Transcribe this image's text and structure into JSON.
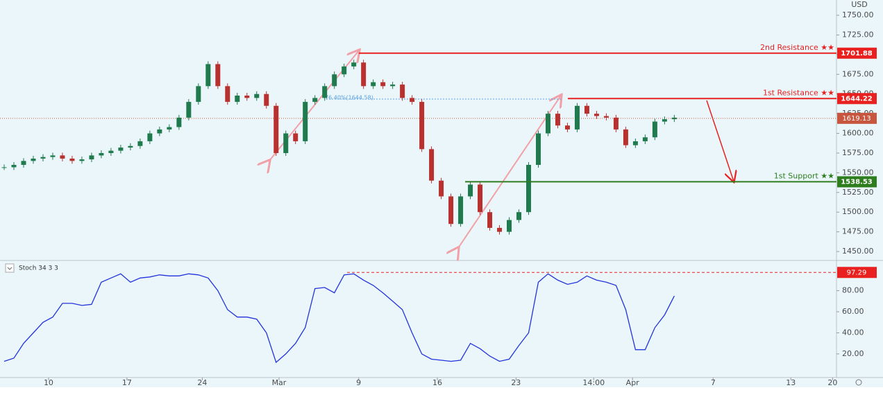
{
  "chart_data": [
    {
      "type": "candlestick",
      "unit": "USD",
      "close": [
        1557,
        1560,
        1565,
        1568,
        1570,
        1572,
        1568,
        1565,
        1567,
        1572,
        1575,
        1578,
        1582,
        1584,
        1590,
        1600,
        1605,
        1608,
        1620,
        1640,
        1660,
        1688,
        1660,
        1640,
        1648,
        1645,
        1650,
        1635,
        1575,
        1600,
        1590,
        1640,
        1645,
        1660,
        1675,
        1685,
        1690,
        1660,
        1665,
        1660,
        1662,
        1645,
        1640,
        1580,
        1540,
        1520,
        1485,
        1520,
        1535,
        1500,
        1480,
        1475,
        1490,
        1500,
        1560,
        1600,
        1625,
        1610,
        1605,
        1635,
        1625,
        1622,
        1620,
        1605,
        1585,
        1590,
        1595,
        1615,
        1618,
        1620
      ],
      "up_color": "#1f7a4d",
      "down_color": "#b8312f",
      "ylim": [
        1439.5,
        1769.4
      ],
      "yticks": [
        {
          "value": 1450,
          "label": "1450.00"
        },
        {
          "value": 1475,
          "label": "1475.00"
        },
        {
          "value": 1500,
          "label": "1500.00"
        },
        {
          "value": 1525,
          "label": "1525.00"
        },
        {
          "value": 1550,
          "label": "1550.00"
        },
        {
          "value": 1575,
          "label": "1575.00"
        },
        {
          "value": 1600,
          "label": "1600.00"
        },
        {
          "value": 1625,
          "label": "1625.00"
        },
        {
          "value": 1650,
          "label": "1650.00"
        },
        {
          "value": 1675,
          "label": "1675.00"
        },
        {
          "value": 1700,
          "label": "1700.00"
        },
        {
          "value": 1725,
          "label": "1725.00"
        },
        {
          "value": 1750,
          "label": "1750.00"
        }
      ],
      "levels": [
        {
          "name": "2nd Resistance ★★",
          "value": 1701.88,
          "color": "#e8201f"
        },
        {
          "name": "1st Resistance ★★",
          "value": 1644.22,
          "color": "#e8201f"
        },
        {
          "name": "1st Support ★★",
          "value": 1538.53,
          "color": "#2e7d1f"
        }
      ],
      "last_price": {
        "value": 1619.13,
        "color": "#c8553d"
      },
      "annotation": "76.40%(1644.58)"
    },
    {
      "type": "line",
      "title": "Stoch 34 3 3",
      "color": "#2233dd",
      "values": [
        13,
        16,
        30,
        40,
        50,
        55,
        68,
        68,
        66,
        67,
        88,
        92,
        96,
        88,
        92,
        93,
        95,
        94,
        94,
        96,
        95,
        92,
        80,
        62,
        55,
        55,
        53,
        40,
        12,
        20,
        30,
        45,
        82,
        83,
        78,
        95,
        96,
        90,
        85,
        78,
        70,
        62,
        40,
        20,
        15,
        14,
        13,
        14,
        30,
        25,
        18,
        13,
        15,
        28,
        40,
        88,
        96,
        90,
        86,
        88,
        94,
        90,
        88,
        85,
        62,
        24,
        24,
        45,
        57,
        75
      ],
      "ylim": [
        -2.4,
        108
      ],
      "yticks": [
        {
          "value": 20,
          "label": "20.00"
        },
        {
          "value": 40,
          "label": "40.00"
        },
        {
          "value": 60,
          "label": "60.00"
        },
        {
          "value": 80,
          "label": "80.00"
        }
      ],
      "level": {
        "value": 97.29,
        "color": "#e8201f"
      },
      "xlim": [
        -0.43,
        85.7
      ],
      "xticks": [
        {
          "value": 4.57,
          "label": "10"
        },
        {
          "value": 12.64,
          "label": "17"
        },
        {
          "value": 20.4,
          "label": "24"
        },
        {
          "value": 28.3,
          "label": "Mar"
        },
        {
          "value": 36.5,
          "label": "9"
        },
        {
          "value": 44.6,
          "label": "16"
        },
        {
          "value": 52.7,
          "label": "23"
        },
        {
          "value": 60.7,
          "label": "14:00"
        },
        {
          "value": 64.7,
          "label": "Apr"
        },
        {
          "value": 73,
          "label": "7"
        },
        {
          "value": 81,
          "label": "13"
        },
        {
          "value": 85.3,
          "label": "20"
        }
      ]
    }
  ]
}
